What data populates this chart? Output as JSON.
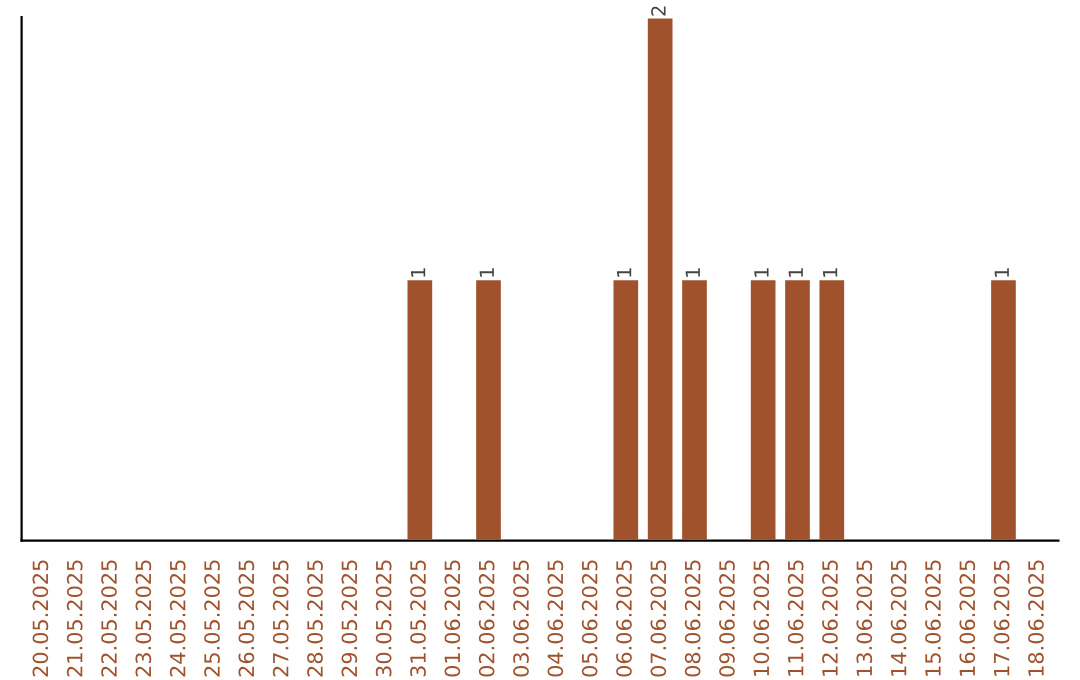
{
  "chart_data": {
    "type": "bar",
    "categories": [
      "20.05.2025",
      "21.05.2025",
      "22.05.2025",
      "23.05.2025",
      "24.05.2025",
      "25.05.2025",
      "26.05.2025",
      "27.05.2025",
      "28.05.2025",
      "29.05.2025",
      "30.05.2025",
      "31.05.2025",
      "01.06.2025",
      "02.06.2025",
      "03.06.2025",
      "04.06.2025",
      "05.06.2025",
      "06.06.2025",
      "07.06.2025",
      "08.06.2025",
      "09.06.2025",
      "10.06.2025",
      "11.06.2025",
      "12.06.2025",
      "13.06.2025",
      "14.06.2025",
      "15.06.2025",
      "16.06.2025",
      "17.06.2025",
      "18.06.2025"
    ],
    "values": [
      0,
      0,
      0,
      0,
      0,
      0,
      0,
      0,
      0,
      0,
      0,
      1,
      0,
      1,
      0,
      0,
      0,
      1,
      2,
      1,
      0,
      1,
      1,
      1,
      0,
      0,
      0,
      0,
      1,
      0
    ],
    "value_labels": [
      null,
      null,
      null,
      null,
      null,
      null,
      null,
      null,
      null,
      null,
      null,
      "1",
      null,
      "1",
      null,
      null,
      null,
      "1",
      "2",
      "1",
      null,
      "1",
      "1",
      "1",
      null,
      null,
      null,
      null,
      "1",
      null
    ],
    "color": "#a0522d",
    "ylim": [
      0,
      2
    ],
    "tick_labels": "x",
    "grid": false
  }
}
